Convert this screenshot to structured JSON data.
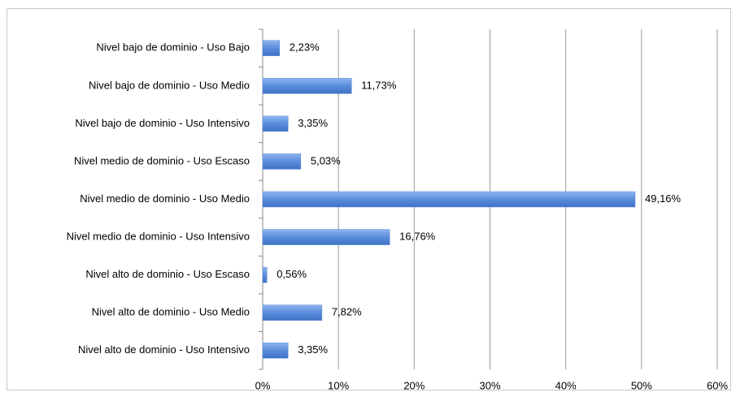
{
  "chart_data": {
    "type": "bar",
    "orientation": "horizontal",
    "categories": [
      "Nivel bajo de dominio - Uso Bajo",
      "Nivel bajo de dominio - Uso Medio",
      "Nivel bajo de dominio - Uso Intensivo",
      "Nivel medio de dominio - Uso Escaso",
      "Nivel medio de dominio - Uso Medio",
      "Nivel medio de dominio - Uso Intensivo",
      "Nivel alto de dominio - Uso Escaso",
      "Nivel alto de dominio - Uso Medio",
      "Nivel alto de dominio - Uso Intensivo"
    ],
    "values": [
      2.23,
      11.73,
      3.35,
      5.03,
      49.16,
      16.76,
      0.56,
      7.82,
      3.35
    ],
    "value_labels": [
      "2,23%",
      "11,73%",
      "3,35%",
      "5,03%",
      "49,16%",
      "16,76%",
      "0,56%",
      "7,82%",
      "3,35%"
    ],
    "color": "#5a8ddb",
    "xlim": [
      0,
      60
    ],
    "xticks": [
      {
        "value": 0,
        "label": "0%"
      },
      {
        "value": 10,
        "label": "10%"
      },
      {
        "value": 20,
        "label": "20%"
      },
      {
        "value": 30,
        "label": "30%"
      },
      {
        "value": 40,
        "label": "40%"
      },
      {
        "value": 50,
        "label": "50%"
      },
      {
        "value": 60,
        "label": "60%"
      }
    ],
    "grid": true
  }
}
